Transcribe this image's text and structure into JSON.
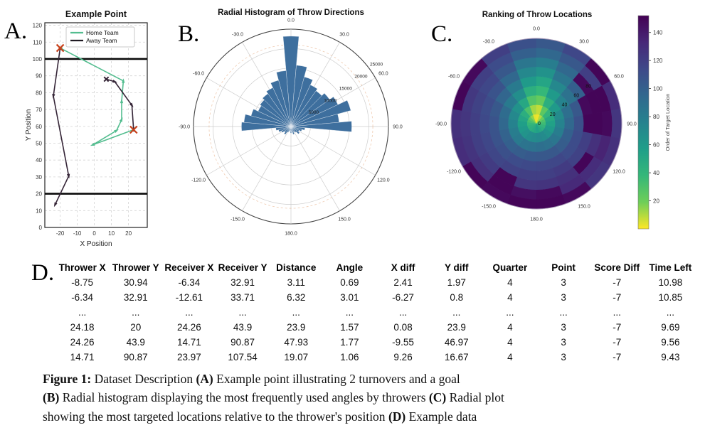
{
  "panel_labels": {
    "a": "A.",
    "b": "B.",
    "c": "C.",
    "d": "D."
  },
  "panel_a": {
    "title": "Example Point",
    "xlabel": "X Position",
    "ylabel": "Y Position",
    "legend": [
      {
        "label": "Home Team",
        "color": "#53bd8f"
      },
      {
        "label": "Away Team",
        "color": "#1f1a22"
      }
    ],
    "x_ticks": [
      -20,
      -10,
      0,
      10,
      20
    ],
    "y_ticks": [
      0,
      10,
      20,
      30,
      40,
      50,
      60,
      70,
      80,
      90,
      100,
      110,
      120
    ],
    "xlim": [
      -29,
      31
    ],
    "ylim": [
      0,
      121.5
    ],
    "goal_lines_y": [
      100,
      20
    ],
    "chart_data": {
      "type": "line",
      "home_color": "#53bd8f",
      "away_color": "#352537",
      "turnover_color": "#c8401a",
      "home_segments": [
        [
          [
            -1,
            49
          ],
          [
            13,
            57.5
          ],
          [
            16,
            64
          ],
          [
            16,
            75
          ],
          [
            17,
            87
          ],
          [
            -20,
            106.5
          ]
        ],
        [
          [
            23,
            58
          ],
          [
            -1,
            49
          ]
        ]
      ],
      "away_segments": [
        [
          [
            7,
            88
          ],
          [
            12,
            86.5
          ],
          [
            22,
            72.5
          ],
          [
            23,
            58
          ]
        ],
        [
          [
            -20,
            106.5
          ],
          [
            -24,
            78
          ],
          [
            -15,
            30.5
          ],
          [
            -23,
            13.5
          ]
        ]
      ],
      "turnover_markers": [
        [
          -20,
          106.5
        ],
        [
          23,
          58
        ]
      ],
      "away_start_marker": [
        7,
        88
      ]
    }
  },
  "panel_b": {
    "title": "Radial Histogram of Throw Directions",
    "bar_color": "#3e6f9e",
    "angle_labels": [
      "0.0",
      "30.0",
      "60.0",
      "90.0",
      "120.0",
      "150.0",
      "180.0",
      "-150.0",
      "-120.0",
      "-90.0",
      "-60.0",
      "-30.0"
    ],
    "angle_label_values": [
      0,
      30,
      60,
      90,
      120,
      150,
      180,
      -150,
      -120,
      -90,
      -60,
      -30
    ],
    "r_ticks": [
      5000,
      10000,
      15000,
      20000,
      25000
    ],
    "r_max": 25000,
    "bin_width_deg": 10,
    "chart_data": {
      "type": "bar",
      "coordinates": "polar",
      "bins": [
        {
          "a": 0,
          "v": 23200
        },
        {
          "a": -10,
          "v": 14400
        },
        {
          "a": 10,
          "v": 15800
        },
        {
          "a": -20,
          "v": 12300
        },
        {
          "a": 20,
          "v": 13200
        },
        {
          "a": -30,
          "v": 11000
        },
        {
          "a": 30,
          "v": 11800
        },
        {
          "a": -40,
          "v": 10300
        },
        {
          "a": 40,
          "v": 11200
        },
        {
          "a": -50,
          "v": 9700
        },
        {
          "a": 50,
          "v": 12100
        },
        {
          "a": -60,
          "v": 9300
        },
        {
          "a": 60,
          "v": 13300
        },
        {
          "a": -70,
          "v": 10600
        },
        {
          "a": 70,
          "v": 15900
        },
        {
          "a": -80,
          "v": 12100
        },
        {
          "a": 80,
          "v": 12400
        },
        {
          "a": -90,
          "v": 12700
        },
        {
          "a": 90,
          "v": 15600
        },
        {
          "a": -100,
          "v": 3900
        },
        {
          "a": 100,
          "v": 3600
        },
        {
          "a": -110,
          "v": 3300
        },
        {
          "a": 110,
          "v": 2900
        },
        {
          "a": -120,
          "v": 2700
        },
        {
          "a": 120,
          "v": 2300
        },
        {
          "a": -130,
          "v": 2100
        },
        {
          "a": 130,
          "v": 2700
        },
        {
          "a": -140,
          "v": 2500
        },
        {
          "a": 140,
          "v": 1900
        },
        {
          "a": -150,
          "v": 1700
        },
        {
          "a": 150,
          "v": 1500
        },
        {
          "a": -160,
          "v": 1300
        },
        {
          "a": 160,
          "v": 2100
        },
        {
          "a": -170,
          "v": 1000
        },
        {
          "a": 170,
          "v": 1100
        },
        {
          "a": 180,
          "v": 1700
        }
      ]
    }
  },
  "panel_c": {
    "title": "Ranking of Throw Locations",
    "angle_labels": [
      "0.0",
      "30.0",
      "60.0",
      "90.0",
      "120.0",
      "150.0",
      "180.0",
      "-150.0",
      "-120.0",
      "-90.0",
      "-60.0",
      "-30.0"
    ],
    "angle_label_values": [
      0,
      30,
      60,
      90,
      120,
      150,
      180,
      -150,
      -120,
      -90,
      -60,
      -30
    ],
    "r_ticks": [
      0,
      20,
      40,
      60,
      80
    ],
    "r_max": 112.5,
    "ring_bounds": [
      0,
      12.5,
      25,
      37.5,
      50,
      62.5,
      75,
      87.5,
      100,
      112.5
    ],
    "sector_width_deg": 20,
    "colormap": [
      "#fde725",
      "#6ece58",
      "#35b779",
      "#1f9e89",
      "#26828e",
      "#31688e",
      "#3e4989",
      "#482878",
      "#440154"
    ],
    "colorbar": {
      "label": "Order of Target Location",
      "ticks": [
        20,
        40,
        60,
        80,
        100,
        120,
        140
      ],
      "vmin": 0,
      "vmax": 152
    },
    "chart_data": {
      "type": "heatmap",
      "coordinates": "polar",
      "value_meaning": "order of target location (rank)",
      "sectors": [
        {
          "a": -170,
          "r": [
            52,
            70,
            88,
            104,
            114,
            120,
            125,
            145,
            150
          ]
        },
        {
          "a": -150,
          "r": [
            48,
            68,
            86,
            102,
            112,
            118,
            150,
            150,
            148
          ]
        },
        {
          "a": -130,
          "r": [
            45,
            64,
            82,
            100,
            110,
            116,
            122,
            128,
            150
          ]
        },
        {
          "a": -110,
          "r": [
            42,
            60,
            80,
            98,
            108,
            115,
            120,
            126,
            130
          ]
        },
        {
          "a": -90,
          "r": [
            38,
            56,
            76,
            95,
            108,
            114,
            120,
            125,
            128
          ]
        },
        {
          "a": -70,
          "r": [
            32,
            52,
            72,
            92,
            105,
            112,
            118,
            124,
            150
          ]
        },
        {
          "a": -50,
          "r": [
            25,
            45,
            65,
            82,
            96,
            108,
            115,
            120,
            148
          ]
        },
        {
          "a": -30,
          "r": [
            15,
            30,
            50,
            68,
            82,
            95,
            105,
            112,
            120
          ]
        },
        {
          "a": -10,
          "r": [
            3,
            12,
            28,
            45,
            60,
            72,
            85,
            100,
            110
          ]
        },
        {
          "a": 10,
          "r": [
            2,
            8,
            22,
            38,
            52,
            65,
            80,
            95,
            105
          ]
        },
        {
          "a": 30,
          "r": [
            10,
            25,
            45,
            60,
            72,
            85,
            95,
            105,
            115
          ]
        },
        {
          "a": 50,
          "r": [
            20,
            40,
            60,
            75,
            88,
            100,
            148,
            120,
            150
          ]
        },
        {
          "a": 70,
          "r": [
            30,
            50,
            70,
            90,
            105,
            148,
            150,
            150,
            130
          ]
        },
        {
          "a": 90,
          "r": [
            35,
            55,
            75,
            95,
            110,
            150,
            150,
            148,
            125
          ]
        },
        {
          "a": 110,
          "r": [
            40,
            60,
            80,
            100,
            112,
            120,
            128,
            135,
            128
          ]
        },
        {
          "a": 130,
          "r": [
            45,
            65,
            85,
            102,
            112,
            118,
            150,
            130,
            125
          ]
        },
        {
          "a": 150,
          "r": [
            50,
            70,
            88,
            105,
            115,
            122,
            128,
            132,
            148
          ]
        },
        {
          "a": 170,
          "r": [
            55,
            72,
            90,
            105,
            115,
            120,
            126,
            148,
            150
          ]
        }
      ]
    }
  },
  "panel_d": {
    "headers": [
      "Thrower X",
      "Thrower Y",
      "Receiver X",
      "Receiver Y",
      "Distance",
      "Angle",
      "X diff",
      "Y diff",
      "Quarter",
      "Point",
      "Score Diff",
      "Time Left"
    ],
    "rows": [
      [
        "-8.75",
        "30.94",
        "-6.34",
        "32.91",
        "3.11",
        "0.69",
        "2.41",
        "1.97",
        "4",
        "3",
        "-7",
        "10.98"
      ],
      [
        "-6.34",
        "32.91",
        "-12.61",
        "33.71",
        "6.32",
        "3.01",
        "-6.27",
        "0.8",
        "4",
        "3",
        "-7",
        "10.85"
      ],
      [
        "...",
        "...",
        "...",
        "...",
        "...",
        "...",
        "...",
        "...",
        "...",
        "...",
        "...",
        "..."
      ],
      [
        "24.18",
        "20",
        "24.26",
        "43.9",
        "23.9",
        "1.57",
        "0.08",
        "23.9",
        "4",
        "3",
        "-7",
        "9.69"
      ],
      [
        "24.26",
        "43.9",
        "14.71",
        "90.87",
        "47.93",
        "1.77",
        "-9.55",
        "46.97",
        "4",
        "3",
        "-7",
        "9.56"
      ],
      [
        "14.71",
        "90.87",
        "23.97",
        "107.54",
        "19.07",
        "1.06",
        "9.26",
        "16.67",
        "4",
        "3",
        "-7",
        "9.43"
      ]
    ]
  },
  "caption": {
    "lines": [
      [
        {
          "t": "Figure 1:",
          "b": 1
        },
        {
          "t": " Dataset Description ",
          "b": 0
        },
        {
          "t": "(A)",
          "b": 1
        },
        {
          "t": " Example point illustrating 2 turnovers and a goal",
          "b": 0
        }
      ],
      [
        {
          "t": "(B)",
          "b": 1
        },
        {
          "t": " Radial histogram displaying the most frequently used angles by throwers ",
          "b": 0
        },
        {
          "t": "(C)",
          "b": 1
        },
        {
          "t": " Radial plot",
          "b": 0
        }
      ],
      [
        {
          "t": "showing the most targeted locations relative to the thrower's position ",
          "b": 0
        },
        {
          "t": "(D)",
          "b": 1
        },
        {
          "t": " Example data",
          "b": 0
        }
      ]
    ]
  }
}
